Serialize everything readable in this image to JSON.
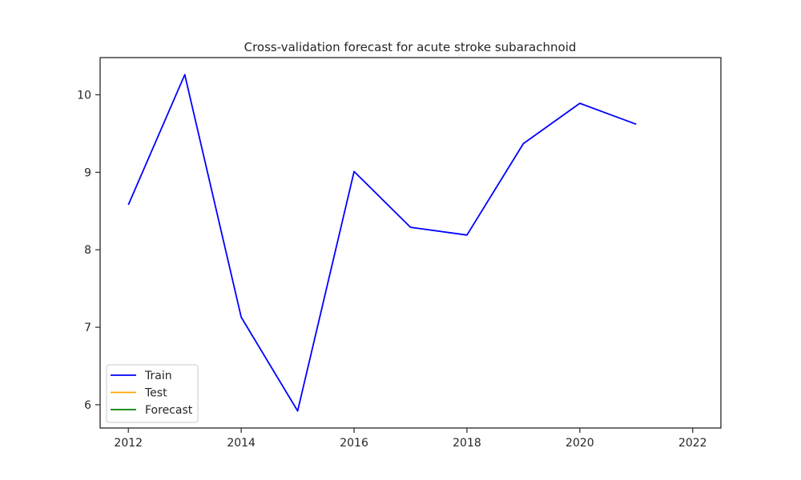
{
  "chart_data": {
    "type": "line",
    "title": "Cross-validation forecast for acute stroke subarachnoid",
    "xlabel": "",
    "ylabel": "",
    "xlim": [
      2011.5,
      2022.5
    ],
    "ylim": [
      5.7,
      10.48
    ],
    "x_ticks": [
      2012,
      2014,
      2016,
      2018,
      2020,
      2022
    ],
    "y_ticks": [
      6,
      7,
      8,
      9,
      10
    ],
    "grid": false,
    "legend_position": "lower-left",
    "series": [
      {
        "name": "Train",
        "color": "#0000ff",
        "x": [
          2012,
          2013,
          2014,
          2015,
          2016,
          2017,
          2018,
          2019,
          2020,
          2021
        ],
        "y": [
          8.58,
          10.26,
          7.13,
          5.92,
          9.01,
          8.29,
          8.19,
          9.37,
          9.89,
          9.62
        ]
      },
      {
        "name": "Test",
        "color": "#ffa500",
        "x": [],
        "y": []
      },
      {
        "name": "Forecast",
        "color": "#008000",
        "x": [],
        "y": []
      }
    ]
  }
}
